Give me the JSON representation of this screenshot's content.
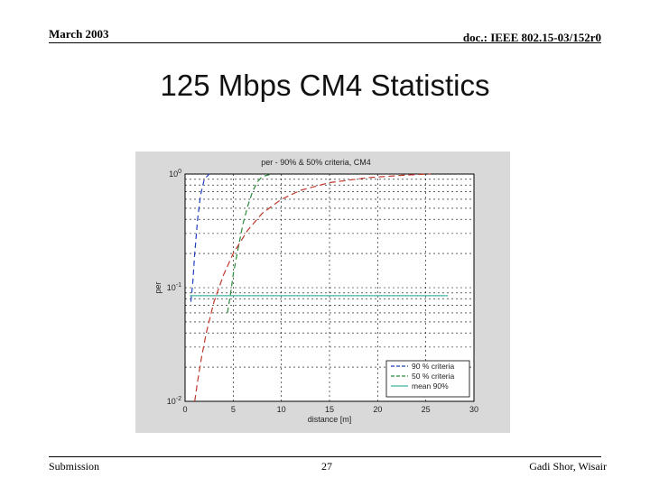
{
  "header": {
    "date": "March 2003",
    "doc_id": "doc.: IEEE 802.15-03/152r0"
  },
  "slide": {
    "title": "125 Mbps CM4 Statistics"
  },
  "footer": {
    "left": "Submission",
    "page": "27",
    "right": "Gadi Shor, Wisair"
  },
  "colors": {
    "frame_bg": "#d9d9d9",
    "plot_bg": "#ffffff",
    "series_blue": "#1f3fbf",
    "series_green": "#2a8a3a",
    "series_red": "#c0392b",
    "series_teal": "#3fb3a0"
  },
  "chart_data": {
    "type": "line",
    "title": "per - 90% & 50% criteria, CM4",
    "xlabel": "distance [m]",
    "ylabel": "per",
    "xlim": [
      0,
      30
    ],
    "ylim": [
      0.01,
      1
    ],
    "yscale": "log",
    "grid": true,
    "legend_position": "bottom-right",
    "x_ticks": [
      0,
      5,
      10,
      15,
      20,
      25,
      30
    ],
    "y_ticks": [
      {
        "value": 0.01,
        "base": "10",
        "exp": "-2"
      },
      {
        "value": 0.1,
        "base": "10",
        "exp": "-1"
      },
      {
        "value": 1,
        "base": "10",
        "exp": "0"
      }
    ],
    "series": [
      {
        "name": "90 % criteria",
        "color": "#1f3fbf",
        "dash": "6,4",
        "x": [
          0.6,
          0.8,
          1.0,
          1.3,
          1.6,
          2.0,
          2.5
        ],
        "y": [
          0.075,
          0.11,
          0.2,
          0.4,
          0.65,
          0.9,
          1.0
        ]
      },
      {
        "name": "50 % criteria",
        "color": "#2a8a3a",
        "dash": "6,4",
        "x": [
          4.4,
          4.7,
          5.0,
          5.5,
          6.0,
          6.5,
          7.0,
          7.5,
          8.0,
          9.0
        ],
        "y": [
          0.06,
          0.085,
          0.13,
          0.22,
          0.36,
          0.52,
          0.7,
          0.85,
          0.95,
          1.0
        ]
      },
      {
        "name": "mean 90%",
        "color": "#3fb3a0",
        "dash": "",
        "x": [
          0.5,
          27.3
        ],
        "y": [
          0.085,
          0.085
        ]
      },
      {
        "name": "",
        "color": "#c0392b",
        "dash": "7,4",
        "x": [
          1.0,
          1.3,
          1.7,
          2.2,
          3.0,
          4.0,
          5.0,
          6.5,
          8.0,
          10.0,
          12.0,
          15.0,
          19.0,
          23.0,
          25.5
        ],
        "y": [
          0.01,
          0.015,
          0.024,
          0.04,
          0.075,
          0.13,
          0.2,
          0.32,
          0.45,
          0.6,
          0.72,
          0.84,
          0.93,
          0.98,
          1.0
        ]
      }
    ]
  }
}
